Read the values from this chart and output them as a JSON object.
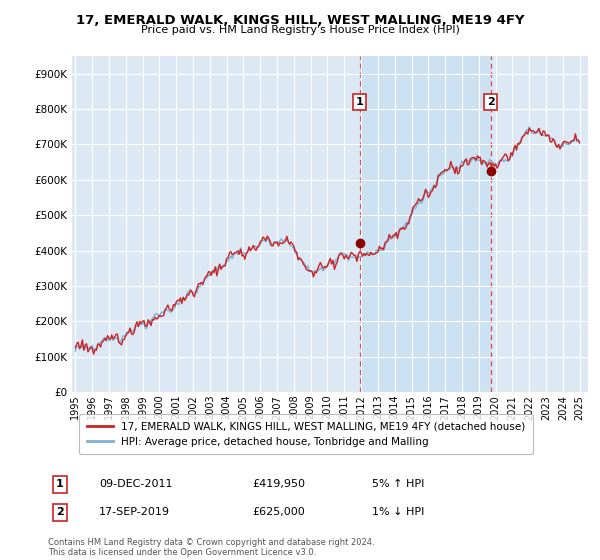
{
  "title": "17, EMERALD WALK, KINGS HILL, WEST MALLING, ME19 4FY",
  "subtitle": "Price paid vs. HM Land Registry's House Price Index (HPI)",
  "ylabel_ticks": [
    "£0",
    "£100K",
    "£200K",
    "£300K",
    "£400K",
    "£500K",
    "£600K",
    "£700K",
    "£800K",
    "£900K"
  ],
  "ytick_values": [
    0,
    100000,
    200000,
    300000,
    400000,
    500000,
    600000,
    700000,
    800000,
    900000
  ],
  "ylim": [
    0,
    950000
  ],
  "xlim_start": 1994.8,
  "xlim_end": 2025.5,
  "background_color": "#ffffff",
  "plot_bg_color": "#dce9f5",
  "plot_bg_color2": "#c8dff0",
  "grid_color": "#ffffff",
  "sale1_date": 2011.92,
  "sale1_price": 419950,
  "sale1_label": "1",
  "sale2_date": 2019.71,
  "sale2_price": 625000,
  "sale2_label": "2",
  "sale1_vline_color": "#dd4444",
  "sale2_vline_color": "#dd4444",
  "marker_color": "#8b0000",
  "hpi_color": "#7fafd4",
  "price_color": "#cc2222",
  "legend_entries": [
    "17, EMERALD WALK, KINGS HILL, WEST MALLING, ME19 4FY (detached house)",
    "HPI: Average price, detached house, Tonbridge and Malling"
  ],
  "annotation1": {
    "label": "1",
    "date": "09-DEC-2011",
    "price": "£419,950",
    "pct": "5% ↑ HPI"
  },
  "annotation2": {
    "label": "2",
    "date": "17-SEP-2019",
    "price": "£625,000",
    "pct": "1% ↓ HPI"
  },
  "footnote": "Contains HM Land Registry data © Crown copyright and database right 2024.\nThis data is licensed under the Open Government Licence v3.0.",
  "xtick_years": [
    1995,
    1996,
    1997,
    1998,
    1999,
    2000,
    2001,
    2002,
    2003,
    2004,
    2005,
    2006,
    2007,
    2008,
    2009,
    2010,
    2011,
    2012,
    2013,
    2014,
    2015,
    2016,
    2017,
    2018,
    2019,
    2020,
    2021,
    2022,
    2023,
    2024,
    2025
  ]
}
